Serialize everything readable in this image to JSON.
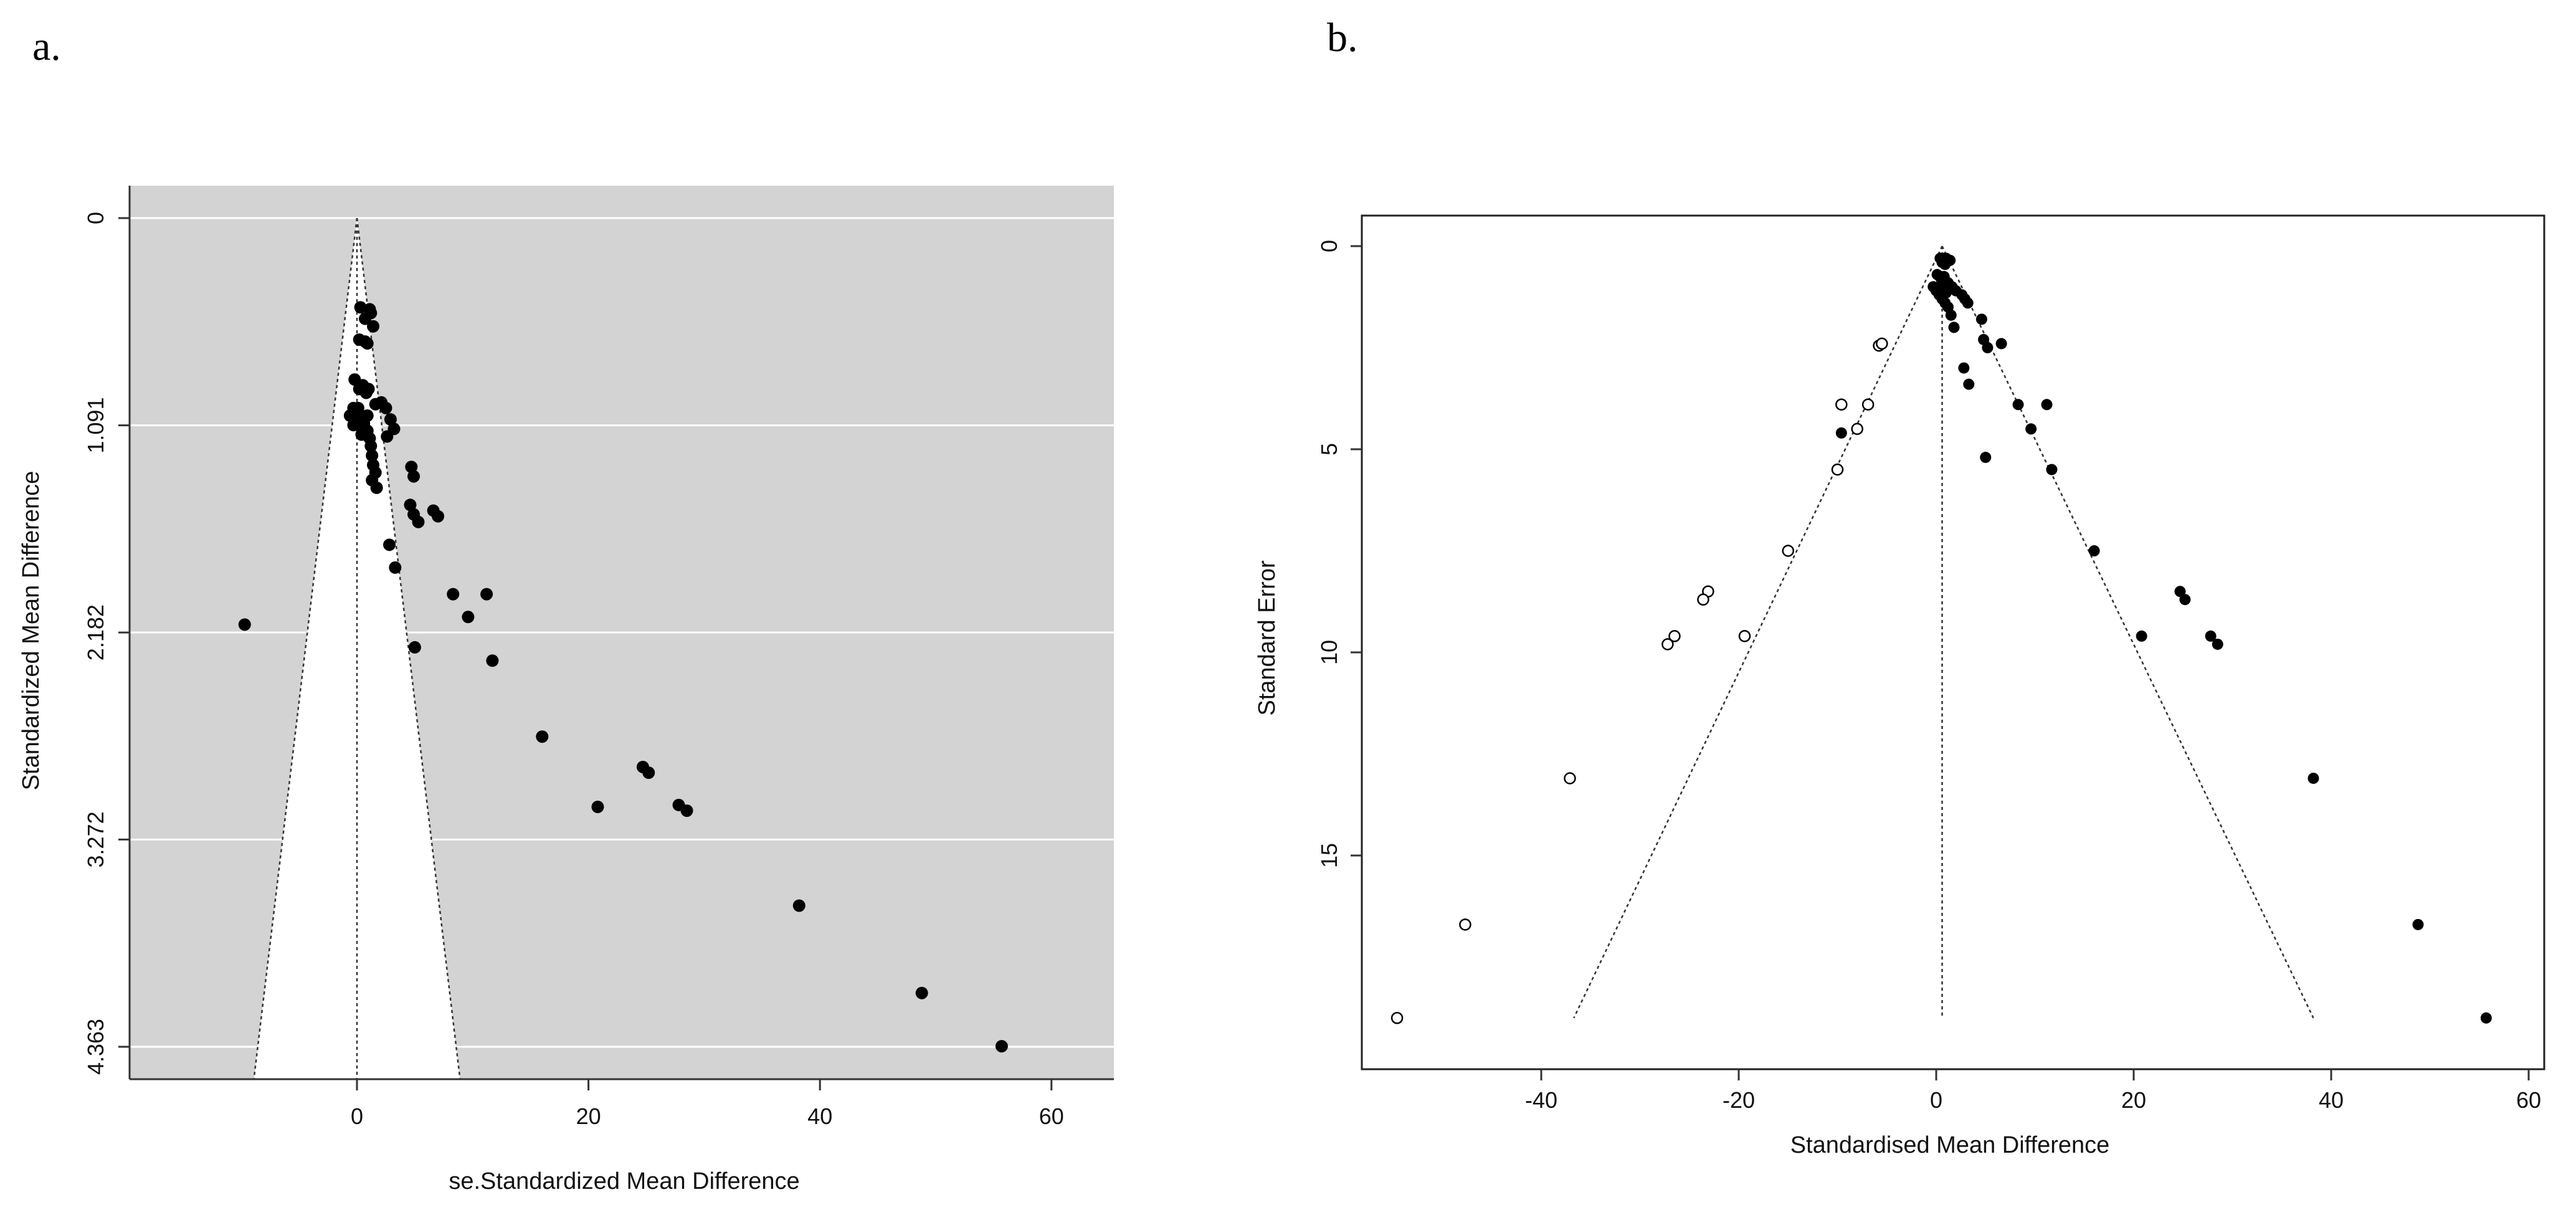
{
  "chart_data": [
    {
      "panel_label": "a.",
      "type": "scatter",
      "subtype": "funnel plot",
      "xlabel": "se.Standardized Mean Difference",
      "ylabel": "Standardized Mean Difference",
      "xlim": [
        -20,
        65
      ],
      "ylim": [
        4.363,
        0
      ],
      "x_ticks": [
        {
          "value": 0,
          "label": "0"
        },
        {
          "value": 20,
          "label": "20"
        },
        {
          "value": 40,
          "label": "40"
        },
        {
          "value": 60,
          "label": "60"
        }
      ],
      "y_ticks": [
        {
          "value": 0,
          "label": "0"
        },
        {
          "value": 1.091,
          "label": "1.091"
        },
        {
          "value": 2.182,
          "label": "2.182"
        },
        {
          "value": 3.272,
          "label": "3.272"
        },
        {
          "value": 4.363,
          "label": "4.363"
        }
      ],
      "background": "#d3d3d3",
      "grid": true,
      "gridline_color": "#ffffff",
      "funnel_region_color": "#ffffff",
      "funnel_center": 0,
      "funnel_limits": {
        "y0": 0,
        "y1": 4.53,
        "x_left_at_y1": -8.9,
        "x_right_at_y1": 8.9
      },
      "series": [
        {
          "marker": "filled circle",
          "points": [
            [
              0.3,
              0.47
            ],
            [
              1.1,
              0.48
            ],
            [
              1.2,
              0.5
            ],
            [
              0.7,
              0.53
            ],
            [
              1.4,
              0.57
            ],
            [
              0.2,
              0.64
            ],
            [
              0.7,
              0.65
            ],
            [
              0.9,
              0.66
            ],
            [
              -0.2,
              0.85
            ],
            [
              0.2,
              0.9
            ],
            [
              0.5,
              0.88
            ],
            [
              0.8,
              0.92
            ],
            [
              1.0,
              0.9
            ],
            [
              1.6,
              0.98
            ],
            [
              2.1,
              0.97
            ],
            [
              2.5,
              1.0
            ],
            [
              2.9,
              1.06
            ],
            [
              3.2,
              1.11
            ],
            [
              2.6,
              1.15
            ],
            [
              -0.6,
              1.04
            ],
            [
              -0.3,
              1.0
            ],
            [
              0.0,
              1.02
            ],
            [
              0.3,
              1.05
            ],
            [
              0.6,
              1.08
            ],
            [
              0.9,
              1.12
            ],
            [
              1.1,
              1.16
            ],
            [
              1.2,
              1.2
            ],
            [
              1.3,
              1.25
            ],
            [
              1.4,
              1.3
            ],
            [
              1.6,
              1.34
            ],
            [
              1.3,
              1.38
            ],
            [
              1.7,
              1.42
            ],
            [
              0.1,
              1.0
            ],
            [
              0.6,
              1.1
            ],
            [
              0.9,
              1.04
            ],
            [
              0.4,
              1.14
            ],
            [
              -0.3,
              1.09
            ],
            [
              4.7,
              1.31
            ],
            [
              4.9,
              1.36
            ],
            [
              4.6,
              1.51
            ],
            [
              4.9,
              1.56
            ],
            [
              5.3,
              1.6
            ],
            [
              6.6,
              1.54
            ],
            [
              7.0,
              1.57
            ],
            [
              2.8,
              1.72
            ],
            [
              3.3,
              1.84
            ],
            [
              -9.7,
              2.14
            ],
            [
              8.3,
              1.98
            ],
            [
              11.2,
              1.98
            ],
            [
              9.6,
              2.1
            ],
            [
              5.0,
              2.26
            ],
            [
              11.7,
              2.33
            ],
            [
              16.0,
              2.73
            ],
            [
              20.8,
              3.1
            ],
            [
              24.7,
              2.89
            ],
            [
              25.2,
              2.92
            ],
            [
              27.8,
              3.09
            ],
            [
              28.5,
              3.12
            ],
            [
              38.2,
              3.62
            ],
            [
              48.8,
              4.08
            ],
            [
              55.7,
              4.36
            ]
          ]
        }
      ]
    },
    {
      "panel_label": "b.",
      "type": "scatter",
      "subtype": "funnel plot",
      "xlabel": "Standardised Mean Difference",
      "ylabel": "Standard Error",
      "xlim": [
        -57,
        60
      ],
      "ylim": [
        19.2,
        0
      ],
      "x_ticks": [
        {
          "value": -40,
          "label": "-40"
        },
        {
          "value": -20,
          "label": "-20"
        },
        {
          "value": 0,
          "label": "0"
        },
        {
          "value": 20,
          "label": "20"
        },
        {
          "value": 40,
          "label": "40"
        },
        {
          "value": 60,
          "label": "60"
        }
      ],
      "y_ticks": [
        {
          "value": 0,
          "label": "0"
        },
        {
          "value": 5,
          "label": "5"
        },
        {
          "value": 10,
          "label": "10"
        },
        {
          "value": 15,
          "label": "15"
        }
      ],
      "background": "#ffffff",
      "grid": false,
      "funnel_center": 0.6,
      "funnel_limits": {
        "y_top": 0,
        "y_bottom": 19.0,
        "x_left_at_bottom": -36.7,
        "x_right_at_bottom": 38.2
      },
      "series": [
        {
          "marker": "filled circle",
          "points": [
            [
              0.4,
              0.3
            ],
            [
              0.7,
              0.3
            ],
            [
              1.0,
              0.3
            ],
            [
              1.4,
              0.35
            ],
            [
              0.6,
              0.4
            ],
            [
              0.9,
              0.45
            ],
            [
              0.1,
              0.7
            ],
            [
              0.5,
              0.8
            ],
            [
              0.8,
              0.75
            ],
            [
              1.2,
              0.9
            ],
            [
              1.6,
              1.0
            ],
            [
              2.0,
              1.1
            ],
            [
              2.6,
              1.2
            ],
            [
              2.9,
              1.3
            ],
            [
              3.2,
              1.4
            ],
            [
              -0.3,
              1.0
            ],
            [
              0.0,
              1.1
            ],
            [
              0.3,
              1.2
            ],
            [
              0.6,
              1.3
            ],
            [
              0.9,
              1.4
            ],
            [
              1.2,
              1.5
            ],
            [
              1.5,
              1.7
            ],
            [
              1.8,
              2.0
            ],
            [
              0.2,
              1.05
            ],
            [
              1.0,
              1.15
            ],
            [
              0.5,
              0.95
            ],
            [
              4.6,
              1.8
            ],
            [
              4.8,
              2.3
            ],
            [
              5.2,
              2.5
            ],
            [
              6.6,
              2.4
            ],
            [
              2.8,
              3.0
            ],
            [
              3.3,
              3.4
            ],
            [
              8.3,
              3.9
            ],
            [
              11.2,
              3.9
            ],
            [
              9.6,
              4.5
            ],
            [
              -9.6,
              4.6
            ],
            [
              5.0,
              5.2
            ],
            [
              11.7,
              5.5
            ],
            [
              16.0,
              7.5
            ],
            [
              24.7,
              8.5
            ],
            [
              25.2,
              8.7
            ],
            [
              20.8,
              9.6
            ],
            [
              27.8,
              9.6
            ],
            [
              28.5,
              9.8
            ],
            [
              38.2,
              13.1
            ],
            [
              48.8,
              16.7
            ],
            [
              55.7,
              19.0
            ]
          ]
        },
        {
          "marker": "open circle",
          "points": [
            [
              -5.8,
              2.45
            ],
            [
              -5.5,
              2.4
            ],
            [
              -9.6,
              3.9
            ],
            [
              -6.9,
              3.9
            ],
            [
              -8.0,
              4.5
            ],
            [
              -10.0,
              5.5
            ],
            [
              -15.0,
              7.5
            ],
            [
              -23.1,
              8.5
            ],
            [
              -23.6,
              8.7
            ],
            [
              -26.5,
              9.6
            ],
            [
              -27.2,
              9.8
            ],
            [
              -19.4,
              9.6
            ],
            [
              -37.1,
              13.1
            ],
            [
              -47.7,
              16.7
            ],
            [
              -54.6,
              19.0
            ]
          ]
        }
      ]
    }
  ]
}
